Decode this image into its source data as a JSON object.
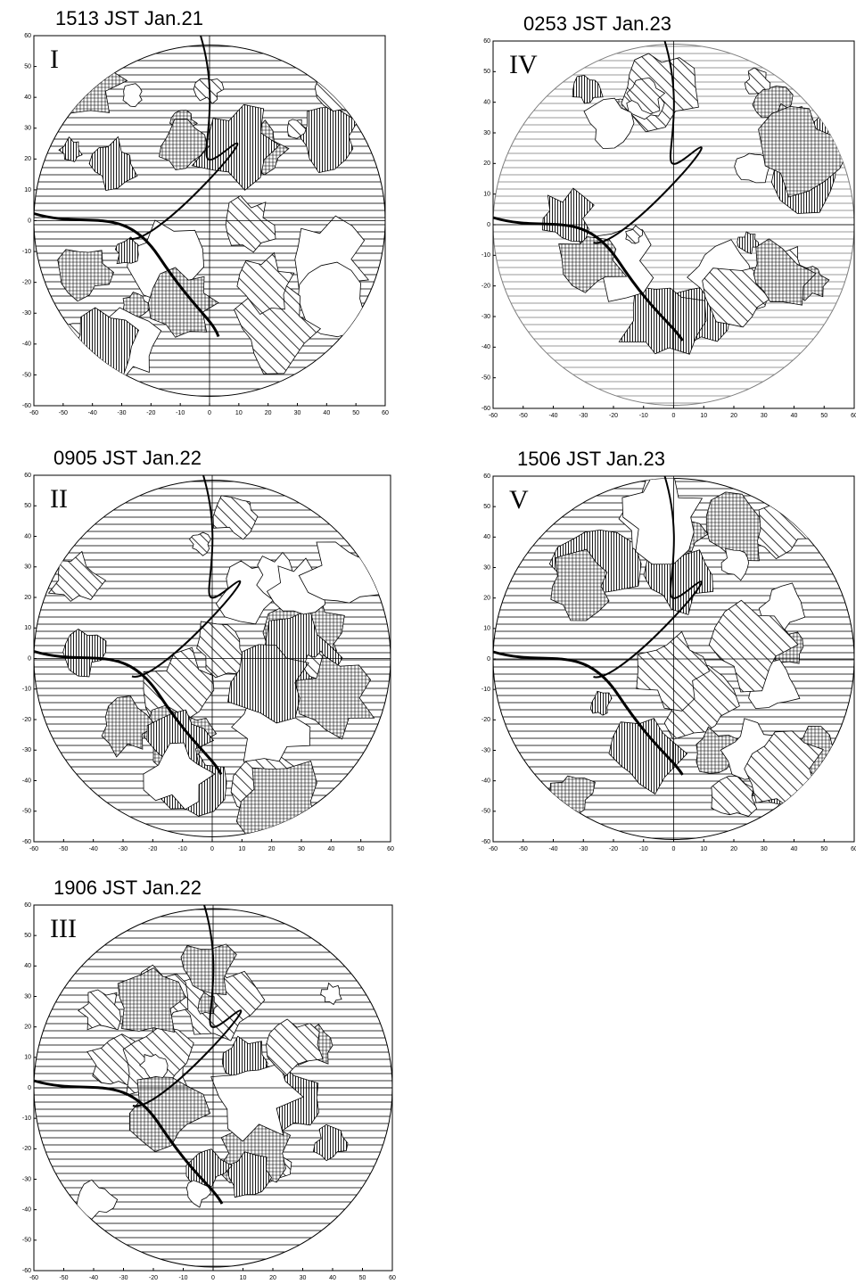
{
  "panels": [
    {
      "title": "1513 JST Jan.21",
      "label": "I",
      "xticks": [
        -60,
        -50,
        -40,
        -30,
        -20,
        -10,
        0,
        10,
        20,
        30,
        40,
        50,
        60
      ],
      "yticks": [
        60,
        50,
        40,
        30,
        20,
        10,
        0,
        -10,
        -20,
        -30,
        -40,
        -50,
        -60
      ]
    },
    {
      "title": "0253 JST Jan.23",
      "label": "IV",
      "xticks": [
        -60,
        -50,
        -40,
        -30,
        -20,
        -10,
        0,
        10,
        20,
        30,
        40,
        50,
        60
      ],
      "yticks": [
        60,
        50,
        40,
        30,
        20,
        10,
        0,
        -10,
        -20,
        -30,
        -40,
        -50,
        -60
      ]
    },
    {
      "title": "0905 JST Jan.22",
      "label": "II",
      "xticks": [
        -60,
        -50,
        -40,
        -30,
        -20,
        -10,
        0,
        10,
        20,
        30,
        40,
        50,
        60
      ],
      "yticks": [
        60,
        50,
        40,
        30,
        20,
        10,
        0,
        -10,
        -20,
        -30,
        -40,
        -50,
        -60
      ]
    },
    {
      "title": "1506 JST Jan.23",
      "label": "V",
      "xticks": [
        -60,
        -50,
        -40,
        -30,
        -20,
        -10,
        0,
        10,
        20,
        30,
        40,
        50,
        60
      ],
      "yticks": [
        60,
        50,
        40,
        30,
        20,
        10,
        0,
        -10,
        -20,
        -30,
        -40,
        -50,
        -60
      ]
    },
    {
      "title": "1906 JST Jan.22",
      "label": "III",
      "xticks": [
        -60,
        -50,
        -40,
        -30,
        -20,
        -10,
        0,
        10,
        20,
        30,
        40,
        50,
        60
      ],
      "yticks": [
        60,
        50,
        40,
        30,
        20,
        10,
        0,
        -10,
        -20,
        -30,
        -40,
        -50,
        -60
      ]
    }
  ]
}
